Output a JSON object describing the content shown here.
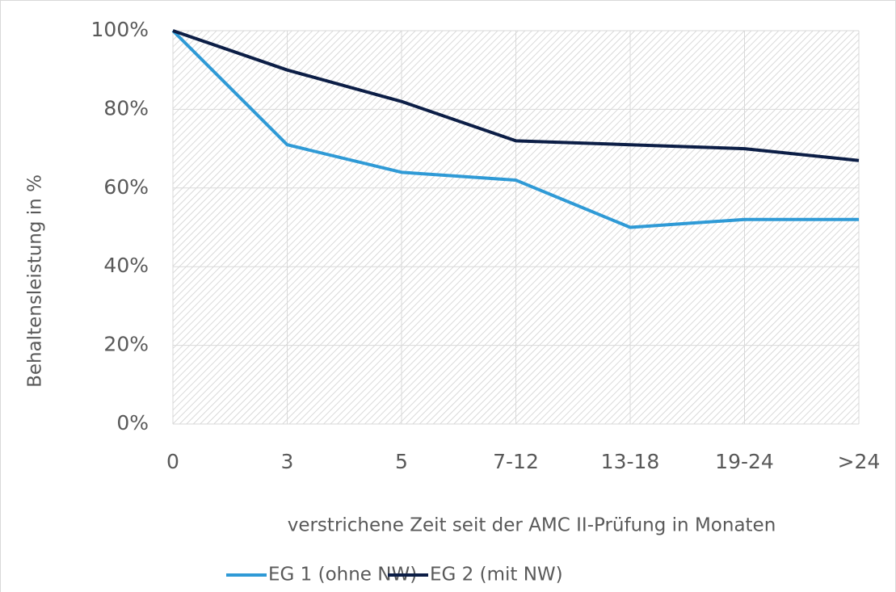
{
  "chart_data": {
    "type": "line",
    "categories": [
      "0",
      "3",
      "5",
      "7-12",
      "13-18",
      "19-24",
      ">24"
    ],
    "series": [
      {
        "name": "EG 1 (ohne NW)",
        "color": "#2f9ad6",
        "values": [
          100,
          71,
          64,
          62,
          50,
          52,
          52
        ]
      },
      {
        "name": "EG 2 (mit NW)",
        "color": "#0c1e46",
        "values": [
          100,
          90,
          82,
          72,
          71,
          70,
          67
        ]
      }
    ],
    "ylabel": "Behaltensleistung in %",
    "xlabel": "verstrichene Zeit seit der AMC II-Prüfung in Monaten",
    "ylim": [
      0,
      100
    ],
    "yticks": [
      {
        "value": 0,
        "label": "0%"
      },
      {
        "value": 20,
        "label": "20%"
      },
      {
        "value": 40,
        "label": "40%"
      },
      {
        "value": 60,
        "label": "60%"
      },
      {
        "value": 80,
        "label": "80%"
      },
      {
        "value": 100,
        "label": "100%"
      }
    ],
    "grid": true,
    "legend": "bottom"
  }
}
